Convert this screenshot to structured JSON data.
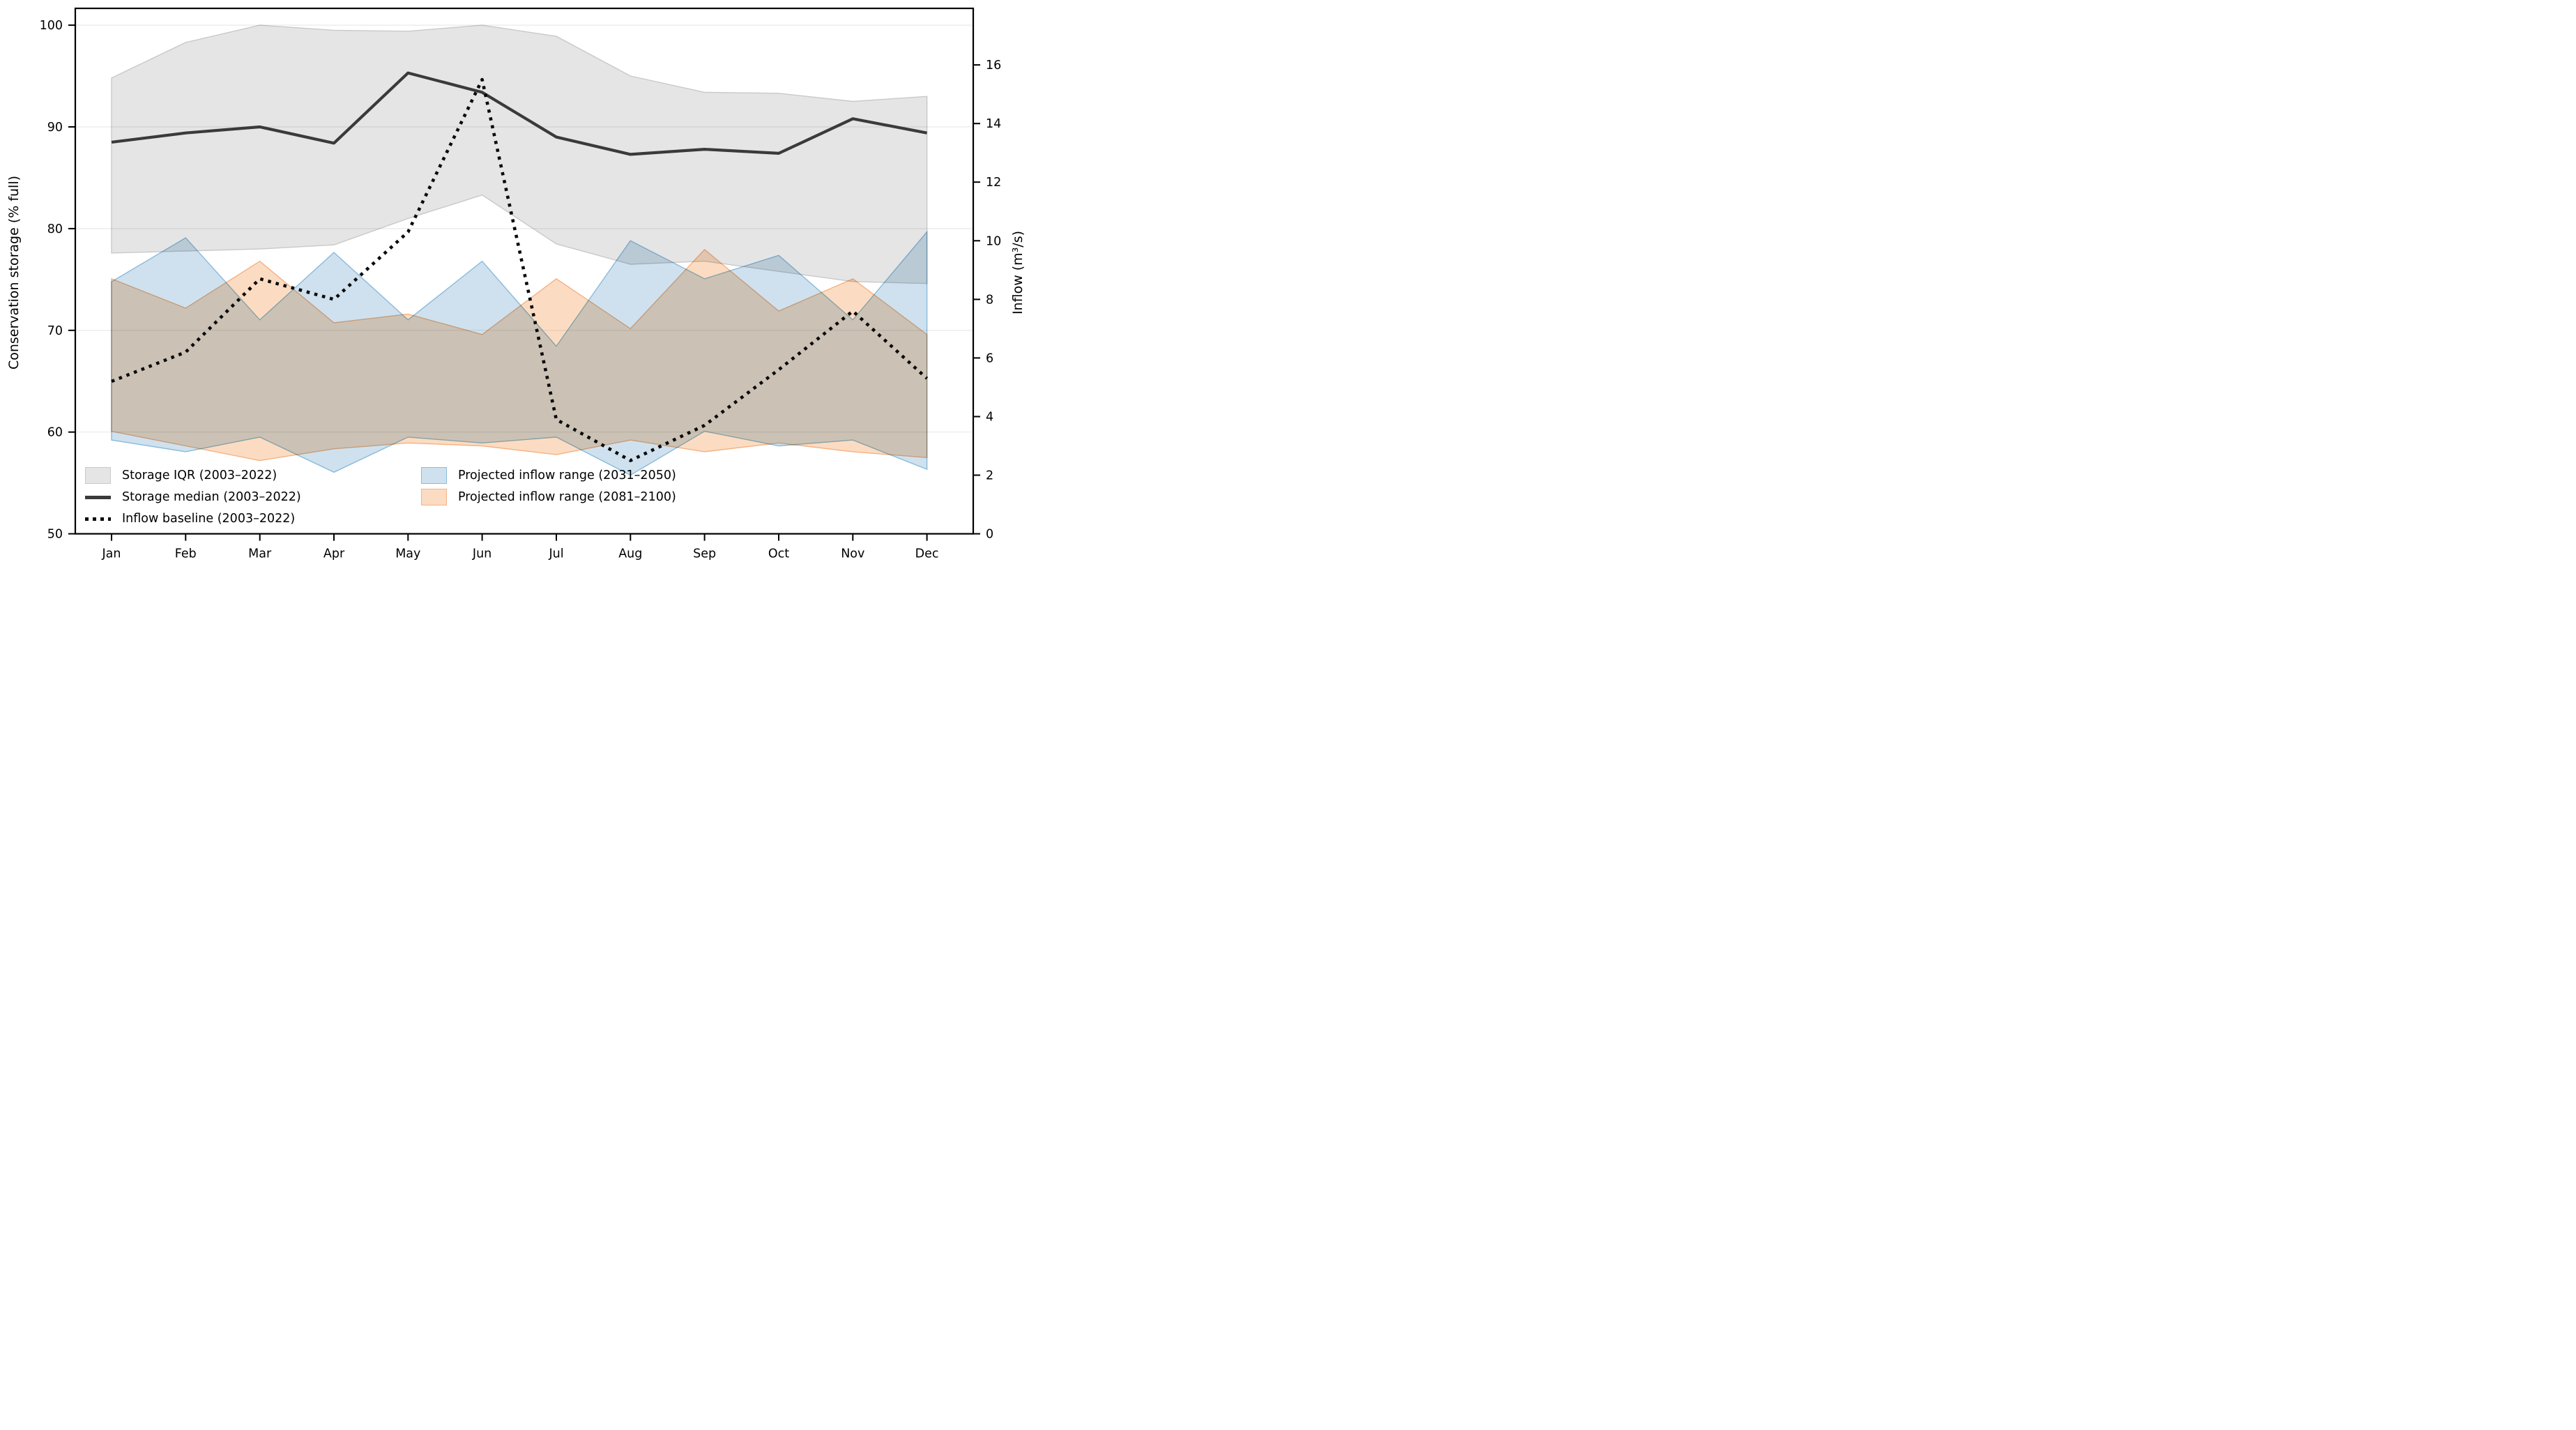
{
  "chart_data": {
    "type": "line",
    "description": "Reservoir conservation storage climatology with observed and projected inflow ranges",
    "categories": [
      "Jan",
      "Feb",
      "Mar",
      "Apr",
      "May",
      "Jun",
      "Jul",
      "Aug",
      "Sep",
      "Oct",
      "Nov",
      "Dec"
    ],
    "ylabel_left": "Conservation storage (% full)",
    "ylabel_right": "Inflow (m³/s)",
    "axis_left": {
      "min": 50,
      "max": 101.65,
      "ticks": [
        50,
        60,
        70,
        80,
        90,
        100
      ]
    },
    "axis_right": {
      "min": 0,
      "max": 17.93,
      "ticks": [
        0,
        2,
        4,
        6,
        8,
        10,
        12,
        14,
        16
      ]
    },
    "grid": "horizontal, at left-axis ticks 60-100, light gray",
    "series": [
      {
        "name": "Storage IQR (2003–2022)",
        "kind": "band",
        "axis": "left",
        "upper": [
          94.8,
          98.3,
          100.0,
          99.5,
          99.4,
          100.0,
          98.9,
          95.0,
          93.4,
          93.3,
          92.5,
          93.0
        ],
        "lower": [
          77.6,
          77.8,
          78.0,
          78.4,
          81.0,
          83.3,
          78.5,
          76.5,
          76.8,
          75.8,
          74.8,
          74.6
        ]
      },
      {
        "name": "Storage median (2003–2022)",
        "kind": "line",
        "axis": "left",
        "values": [
          88.5,
          89.4,
          90.0,
          88.4,
          95.3,
          93.4,
          89.0,
          87.3,
          87.8,
          87.4,
          90.8,
          89.4
        ]
      },
      {
        "name": "Inflow baseline (2003–2022)",
        "kind": "dotted-line",
        "axis": "right",
        "values": [
          5.2,
          6.2,
          8.7,
          8.0,
          10.3,
          15.5,
          3.9,
          2.5,
          3.7,
          5.6,
          7.6,
          5.3
        ]
      },
      {
        "name": "Projected inflow range (2031–2050)",
        "kind": "band",
        "axis": "right",
        "upper": [
          8.6,
          10.1,
          7.3,
          9.6,
          7.3,
          9.3,
          6.4,
          10.0,
          8.7,
          9.5,
          7.3,
          10.3
        ],
        "lower": [
          3.2,
          2.8,
          3.3,
          2.1,
          3.3,
          3.1,
          3.3,
          2.0,
          3.5,
          3.0,
          3.2,
          2.2
        ]
      },
      {
        "name": "Projected inflow range (2081–2100)",
        "kind": "band",
        "axis": "right",
        "upper": [
          8.7,
          7.7,
          9.3,
          7.2,
          7.5,
          6.8,
          8.7,
          7.0,
          9.7,
          7.6,
          8.7,
          6.8
        ],
        "lower": [
          3.5,
          3.0,
          2.5,
          2.9,
          3.1,
          3.0,
          2.7,
          3.2,
          2.8,
          3.1,
          2.8,
          2.6
        ]
      }
    ],
    "legend": [
      {
        "label": "Storage IQR (2003–2022)",
        "swatch": "gray-patch"
      },
      {
        "label": "Storage median (2003–2022)",
        "swatch": "solid-line"
      },
      {
        "label": "Inflow baseline (2003–2022)",
        "swatch": "dotted-line"
      },
      {
        "label": "Projected inflow range (2031–2050)",
        "swatch": "blue-patch"
      },
      {
        "label": "Projected inflow range (2081–2100)",
        "swatch": "orange-patch"
      }
    ],
    "legend_position": "lower left, two columns, no frame",
    "colors": {
      "gray_band": "#e5e5e5",
      "gray_edge": "#c9c9c9",
      "median_line": "#3a3a3a",
      "baseline_line": "#0a0a0a",
      "blue_band": "#cfe1ee",
      "blue_edge": "#8abbdb",
      "orange_band": "#fbdcc2",
      "orange_edge": "#f5b183",
      "grid_line": "#e9e9e9",
      "spine": "#000000"
    }
  }
}
